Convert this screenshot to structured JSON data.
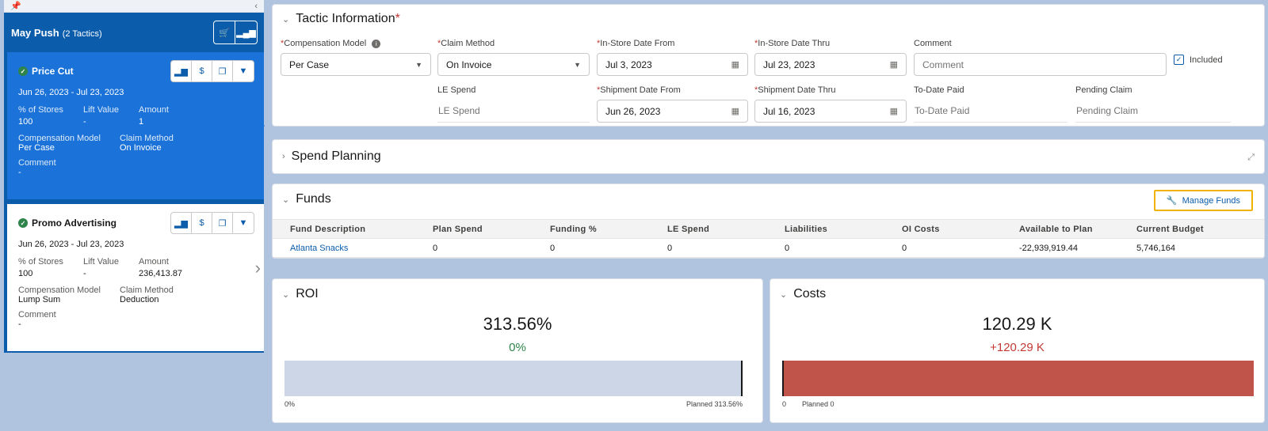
{
  "promotion": {
    "name": "May Push",
    "tactic_count": "(2 Tactics)"
  },
  "tactics": [
    {
      "name": "Price Cut",
      "dates": "Jun 26, 2023 - Jul 23, 2023",
      "pct_stores_label": "% of Stores",
      "pct_stores": "100",
      "lift_label": "Lift Value",
      "lift": "-",
      "amount_label": "Amount",
      "amount": "1",
      "comp_model_label": "Compensation Model",
      "comp_model": "Per Case",
      "claim_method_label": "Claim Method",
      "claim_method": "On Invoice",
      "comment_label": "Comment",
      "comment": "-"
    },
    {
      "name": "Promo Advertising",
      "dates": "Jun 26, 2023 - Jul 23, 2023",
      "pct_stores_label": "% of Stores",
      "pct_stores": "100",
      "lift_label": "Lift Value",
      "lift": "-",
      "amount_label": "Amount",
      "amount": "236,413.87",
      "comp_model_label": "Compensation Model",
      "comp_model": "Lump Sum",
      "claim_method_label": "Claim Method",
      "claim_method": "Deduction",
      "comment_label": "Comment",
      "comment": "-"
    }
  ],
  "tactic_info": {
    "title": "Tactic Information",
    "required_mark": "*",
    "comp_model": {
      "label": "Compensation Model",
      "value": "Per Case"
    },
    "claim_method": {
      "label": "Claim Method",
      "value": "On Invoice"
    },
    "instore_from": {
      "label": "In-Store Date From",
      "value": "Jul 3, 2023"
    },
    "instore_thru": {
      "label": "In-Store Date Thru",
      "value": "Jul 23, 2023"
    },
    "comment": {
      "label": "Comment",
      "placeholder": "Comment"
    },
    "included": {
      "label": "Included",
      "checked": true
    },
    "le_spend": {
      "label": "LE Spend",
      "placeholder": "LE Spend"
    },
    "ship_from": {
      "label": "Shipment Date From",
      "value": "Jun 26, 2023"
    },
    "ship_thru": {
      "label": "Shipment Date Thru",
      "value": "Jul 16, 2023"
    },
    "todate_paid": {
      "label": "To-Date Paid",
      "placeholder": "To-Date Paid"
    },
    "pending_claim": {
      "label": "Pending Claim",
      "placeholder": "Pending Claim"
    }
  },
  "spend_planning": {
    "title": "Spend Planning"
  },
  "funds": {
    "title": "Funds",
    "manage_label": "Manage Funds",
    "columns": [
      "Fund Description",
      "Plan Spend",
      "Funding %",
      "LE Spend",
      "Liabilities",
      "OI Costs",
      "Available to Plan",
      "Current Budget"
    ],
    "rows": [
      [
        "Atlanta Snacks",
        "0",
        "0",
        "0",
        "0",
        "0",
        "-22,939,919.44",
        "5,746,164"
      ]
    ]
  },
  "roi": {
    "title": "ROI",
    "value": "313.56%",
    "delta": "0%",
    "axis_min": "0%",
    "planned": "Planned 313.56%",
    "fill_fraction": 1.0,
    "color": "#cdd6e6",
    "delta_color": "#2e844a"
  },
  "costs": {
    "title": "Costs",
    "value": "120.29 K",
    "delta": "+120.29 K",
    "axis_min": "0",
    "planned": "Planned 0",
    "fill_fraction": 1.0,
    "color": "#c0544a",
    "delta_color": "#c23934"
  },
  "icons": [
    "pin-icon",
    "collapse-left-icon",
    "cart-icon",
    "bar-chart-icon",
    "check-icon",
    "money-bag-icon",
    "copy-icon",
    "chevron-down-icon",
    "calendar-icon",
    "info-icon",
    "expand-icon",
    "wrench-icon",
    "chevron-right-icon"
  ]
}
